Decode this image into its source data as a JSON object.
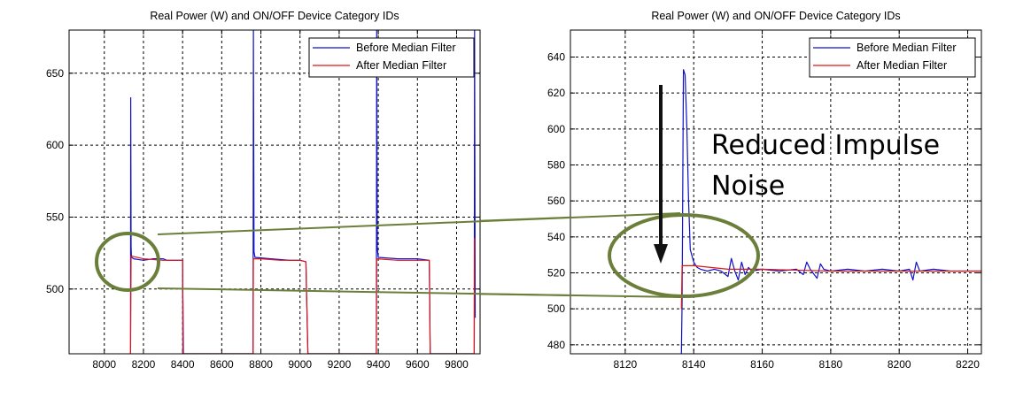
{
  "colors": {
    "before": "#1010c8",
    "after": "#e01515",
    "highlight": "#6b7f3a",
    "arrow": "#111111",
    "grid": "#000000"
  },
  "annotation": {
    "text": "Reduced Impulse Noise"
  },
  "chart_data": [
    {
      "type": "line",
      "title": "Real Power (W) and ON/OFF Device Category IDs",
      "xlabel": "",
      "ylabel": "",
      "xlim": [
        7820,
        9920
      ],
      "ylim": [
        455,
        680
      ],
      "xticks": [
        8000,
        8200,
        8400,
        8600,
        8800,
        9000,
        9200,
        9400,
        9600,
        9800
      ],
      "yticks": [
        500,
        550,
        600,
        650
      ],
      "grid": true,
      "legend": "top-right",
      "series": [
        {
          "name": "Before Median Filter",
          "x": [
            8134,
            8135,
            8137,
            8138,
            8140,
            8150,
            8200,
            8250,
            8300,
            8320,
            8400,
            8401,
            8402,
            8404,
            8760,
            8762,
            8765,
            8770,
            8850,
            8950,
            9000,
            9030,
            9033,
            9040,
            9390,
            9392,
            9395,
            9400,
            9500,
            9600,
            9660,
            9662,
            9665,
            9890,
            9892,
            9895
          ],
          "y": [
            455,
            633,
            530,
            524,
            522,
            521,
            520,
            521,
            521,
            520,
            520,
            495,
            490,
            455,
            455,
            680,
            526,
            522,
            521,
            520,
            520,
            519,
            500,
            455,
            455,
            680,
            528,
            522,
            521,
            521,
            520,
            505,
            455,
            455,
            680,
            480
          ]
        },
        {
          "name": "After Median Filter",
          "x": [
            8134,
            8137,
            8200,
            8300,
            8320,
            8400,
            8401,
            8404,
            8760,
            8762,
            8800,
            8900,
            9000,
            9030,
            9040,
            9390,
            9392,
            9500,
            9600,
            9660,
            9665,
            9890,
            9892,
            9895
          ],
          "y": [
            455,
            523,
            521,
            520,
            520,
            520,
            455,
            455,
            455,
            521,
            521,
            520,
            520,
            519,
            455,
            455,
            521,
            520,
            520,
            520,
            455,
            455,
            535,
            535
          ]
        }
      ]
    },
    {
      "type": "line",
      "title": "Real Power (W) and ON/OFF Device Category IDs",
      "xlabel": "",
      "ylabel": "",
      "xlim": [
        8104,
        8224
      ],
      "ylim": [
        475,
        655
      ],
      "xticks": [
        8120,
        8140,
        8160,
        8180,
        8200,
        8220
      ],
      "yticks": [
        480,
        500,
        520,
        540,
        560,
        580,
        600,
        620,
        640
      ],
      "grid": true,
      "legend": "top-right",
      "series": [
        {
          "name": "Before Median Filter",
          "x": [
            8136.4,
            8136.6,
            8137,
            8137.5,
            8138,
            8138.5,
            8139,
            8140,
            8141,
            8142,
            8144,
            8146,
            8148,
            8150,
            8151,
            8152,
            8153,
            8154,
            8155,
            8156,
            8157,
            8160,
            8165,
            8170,
            8172,
            8173,
            8174,
            8176,
            8177,
            8178,
            8180,
            8185,
            8190,
            8195,
            8200,
            8203,
            8204,
            8205,
            8206,
            8210,
            8215,
            8220,
            8224
          ],
          "y": [
            475,
            505,
            633,
            630,
            600,
            560,
            533,
            526,
            523,
            522,
            521,
            522,
            521,
            518,
            528,
            521,
            516,
            526,
            519,
            523,
            521,
            522,
            521,
            522,
            519,
            526,
            522,
            517,
            525,
            522,
            521,
            522,
            521,
            522,
            521,
            522,
            516,
            526,
            521,
            522,
            521,
            521,
            521
          ]
        },
        {
          "name": "After Median Filter",
          "x": [
            8136.4,
            8136.6,
            8137,
            8140,
            8145,
            8150,
            8155,
            8160,
            8180,
            8200,
            8224
          ],
          "y": [
            500,
            524,
            524,
            524,
            523,
            522,
            522,
            522,
            521,
            521,
            521
          ]
        }
      ]
    }
  ]
}
